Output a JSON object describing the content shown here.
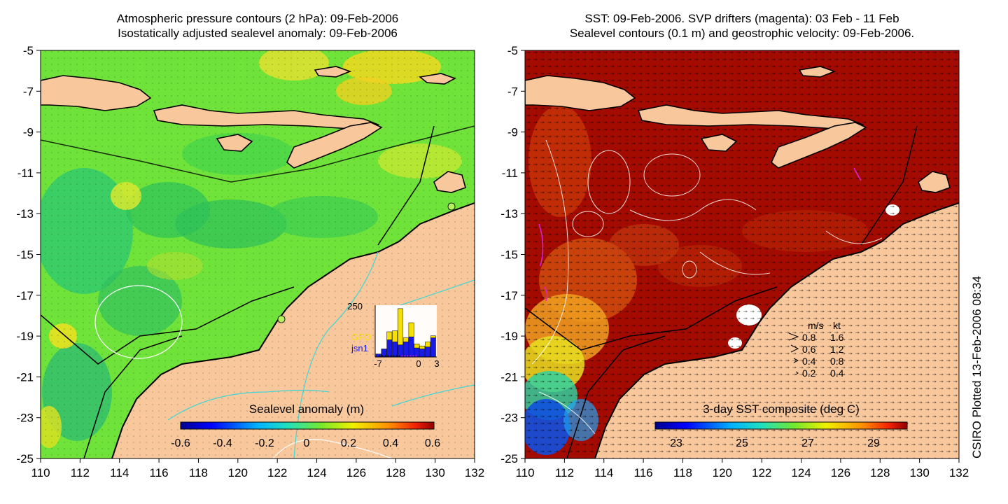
{
  "left_panel": {
    "title_line1": "Atmospheric pressure contours (2 hPa): 09-Feb-2006",
    "title_line2": "Isostatically adjusted sealevel anomaly: 09-Feb-2006",
    "colorbar_label": "Sealevel anomaly (m)",
    "colorbar_ticks": [
      "-0.6",
      "-0.4",
      "-0.2",
      "0",
      "0.2",
      "0.4",
      "0.6"
    ],
    "inset": {
      "ymax_label": "250",
      "xticks": [
        "-7",
        "0",
        "3"
      ],
      "legend": [
        {
          "text": "GFO",
          "color": "#f5e000"
        },
        {
          "text": "jsn1",
          "color": "#1a1ae6"
        }
      ],
      "bars_gfo": [
        0,
        0,
        40,
        55,
        180,
        20,
        70,
        20,
        15,
        25,
        10
      ],
      "bars_jsn1": [
        15,
        40,
        85,
        75,
        60,
        75,
        100,
        45,
        40,
        50,
        95
      ]
    }
  },
  "right_panel": {
    "title_line1": "SST: 09-Feb-2006. SVP drifters (magenta): 03 Feb - 11 Feb",
    "title_line2": "Sealevel contours (0.1 m) and geostrophic velocity: 09-Feb-2006.",
    "colorbar_label": "3-day SST composite (deg C)",
    "colorbar_ticks": [
      "23",
      "25",
      "27",
      "29"
    ],
    "velocity_legend": {
      "header_ms": "m/s",
      "header_kt": "kt",
      "rows": [
        {
          "ms": "0.8",
          "kt": "1.6"
        },
        {
          "ms": "0.6",
          "kt": "1.2"
        },
        {
          "ms": "0.4",
          "kt": "0.8"
        },
        {
          "ms": "0.2",
          "kt": "0.4"
        }
      ]
    }
  },
  "axes": {
    "x_ticks": [
      "110",
      "112",
      "114",
      "116",
      "118",
      "120",
      "122",
      "124",
      "126",
      "128",
      "130",
      "132"
    ],
    "y_ticks": [
      "-5",
      "-7",
      "-9",
      "-11",
      "-13",
      "-15",
      "-17",
      "-19",
      "-21",
      "-23",
      "-25"
    ]
  },
  "credit": "CSIRO Plotted 13-Feb-2006 08:34",
  "colors": {
    "land": "#f9c79c",
    "sla_mid": "#6fe33a",
    "sst_warm": "#a30a00",
    "contour_white": "#ffffff",
    "contour_cyan": "#3fd6d6"
  }
}
